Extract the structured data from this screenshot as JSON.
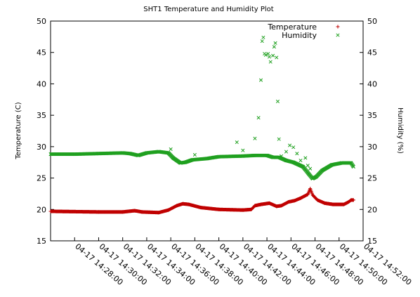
{
  "chart_data": {
    "type": "scatter",
    "title": "SHT1 Temperature and Humidity Plot",
    "ylabel": "Temperature (C)",
    "y2label": "Humidity (%)",
    "ylim": [
      15,
      50
    ],
    "y2lim": [
      15,
      50
    ],
    "yticks": [
      15,
      20,
      25,
      30,
      35,
      40,
      45,
      50
    ],
    "y2ticks": [
      15,
      20,
      25,
      30,
      35,
      40,
      45,
      50
    ],
    "xlim_minutes": [
      26,
      52
    ],
    "x_unit": "minutes after 14:00 on 04-17",
    "xticks": [
      {
        "value": 28,
        "label": "04-17 14:28:00"
      },
      {
        "value": 30,
        "label": "04-17 14:30:00"
      },
      {
        "value": 32,
        "label": "04-17 14:32:00"
      },
      {
        "value": 34,
        "label": "04-17 14:34:00"
      },
      {
        "value": 36,
        "label": "04-17 14:36:00"
      },
      {
        "value": 38,
        "label": "04-17 14:38:00"
      },
      {
        "value": 40,
        "label": "04-17 14:40:00"
      },
      {
        "value": 42,
        "label": "04-17 14:42:00"
      },
      {
        "value": 44,
        "label": "04-17 14:44:00"
      },
      {
        "value": 46,
        "label": "04-17 14:46:00"
      },
      {
        "value": 48,
        "label": "04-17 14:48:00"
      },
      {
        "value": 50,
        "label": "04-17 14:50:00"
      },
      {
        "value": 52,
        "label": "04-17 14:52:00"
      }
    ],
    "legend_position": "top-right",
    "series": [
      {
        "name": "Temperature",
        "marker": "+",
        "color": "#c00000",
        "axis": "left",
        "segments": [
          [
            26.0,
            19.7
          ],
          [
            30.0,
            19.6
          ],
          [
            32.0,
            19.6
          ],
          [
            33.0,
            19.8
          ],
          [
            33.6,
            19.6
          ],
          [
            35.0,
            19.5
          ],
          [
            35.8,
            19.9
          ],
          [
            36.5,
            20.6
          ],
          [
            37.0,
            20.9
          ],
          [
            37.5,
            20.8
          ],
          [
            38.5,
            20.3
          ],
          [
            40.0,
            20.0
          ],
          [
            42.0,
            19.9
          ],
          [
            42.7,
            20.0
          ],
          [
            43.0,
            20.6
          ],
          [
            43.5,
            20.8
          ],
          [
            44.2,
            21.0
          ],
          [
            44.8,
            20.5
          ],
          [
            45.2,
            20.6
          ],
          [
            45.8,
            21.2
          ],
          [
            46.3,
            21.4
          ],
          [
            46.8,
            21.8
          ],
          [
            47.4,
            22.4
          ],
          [
            47.6,
            23.3
          ],
          [
            47.8,
            22.3
          ],
          [
            48.2,
            21.5
          ],
          [
            48.8,
            21.0
          ],
          [
            49.5,
            20.8
          ],
          [
            50.4,
            20.8
          ],
          [
            50.8,
            21.2
          ],
          [
            51.0,
            21.5
          ],
          [
            51.2,
            21.5
          ]
        ]
      },
      {
        "name": "Humidity",
        "marker": "x",
        "color": "#20a020",
        "axis": "right",
        "segments": [
          [
            26.0,
            28.8
          ],
          [
            28.0,
            28.8
          ],
          [
            30.0,
            28.9
          ],
          [
            32.0,
            29.0
          ],
          [
            32.6,
            28.9
          ],
          [
            33.3,
            28.6
          ],
          [
            34.0,
            29.0
          ],
          [
            35.0,
            29.2
          ],
          [
            35.8,
            29.0
          ],
          [
            36.2,
            28.2
          ],
          [
            36.8,
            27.4
          ],
          [
            37.2,
            27.5
          ],
          [
            37.8,
            27.9
          ],
          [
            39.0,
            28.1
          ],
          [
            40.0,
            28.4
          ],
          [
            42.0,
            28.5
          ],
          [
            43.0,
            28.6
          ],
          [
            44.0,
            28.6
          ],
          [
            44.5,
            28.3
          ],
          [
            45.0,
            28.3
          ],
          [
            45.6,
            27.8
          ],
          [
            46.2,
            27.5
          ],
          [
            47.0,
            26.8
          ],
          [
            47.5,
            25.6
          ],
          [
            47.8,
            24.9
          ],
          [
            48.1,
            25.2
          ],
          [
            48.6,
            26.2
          ],
          [
            49.4,
            27.1
          ],
          [
            50.2,
            27.4
          ],
          [
            51.0,
            27.4
          ],
          [
            51.2,
            26.8
          ]
        ],
        "scattered": [
          [
            36.0,
            29.6
          ],
          [
            38.0,
            28.7
          ],
          [
            41.5,
            30.7
          ],
          [
            42.0,
            29.4
          ],
          [
            43.0,
            31.3
          ],
          [
            43.3,
            34.6
          ],
          [
            43.5,
            40.6
          ],
          [
            43.6,
            46.8
          ],
          [
            43.7,
            47.4
          ],
          [
            43.8,
            44.8
          ],
          [
            43.9,
            44.6
          ],
          [
            44.1,
            44.8
          ],
          [
            44.2,
            44.3
          ],
          [
            44.3,
            43.5
          ],
          [
            44.5,
            44.5
          ],
          [
            44.6,
            45.9
          ],
          [
            44.7,
            46.5
          ],
          [
            44.8,
            44.2
          ],
          [
            44.9,
            37.2
          ],
          [
            45.0,
            31.2
          ],
          [
            45.2,
            28.5
          ],
          [
            45.6,
            29.2
          ],
          [
            45.9,
            30.2
          ],
          [
            46.2,
            29.9
          ],
          [
            46.5,
            28.9
          ],
          [
            46.8,
            27.8
          ],
          [
            47.2,
            28.2
          ],
          [
            47.4,
            27.0
          ],
          [
            47.6,
            26.5
          ]
        ]
      }
    ]
  }
}
